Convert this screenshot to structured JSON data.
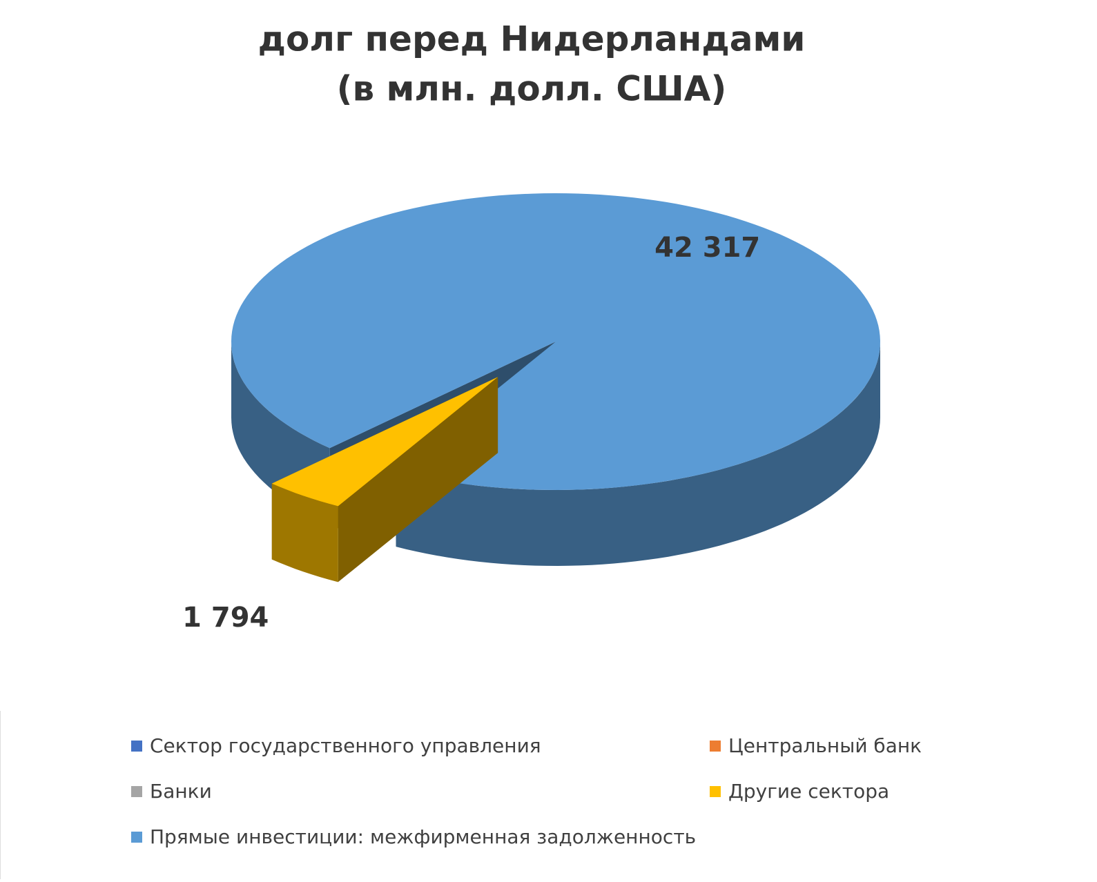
{
  "chart_data": {
    "type": "pie3d",
    "title": "долг перед Нидерландами",
    "subtitle": "(в млн. долл. США)",
    "categories": [
      "Сектор государственного управления",
      "Центральный банк",
      "Банки",
      "Другие сектора",
      "Прямые инвестиции: межфирменная задолженность"
    ],
    "values": [
      0,
      0,
      0,
      1794,
      42317
    ],
    "value_labels": [
      null,
      null,
      null,
      "1 794",
      "42 317"
    ],
    "colors": [
      "#4472c4",
      "#ed7d31",
      "#a5a5a5",
      "#ffc000",
      "#5b9bd5"
    ],
    "exploded": [
      3
    ],
    "legend": "bottom"
  }
}
